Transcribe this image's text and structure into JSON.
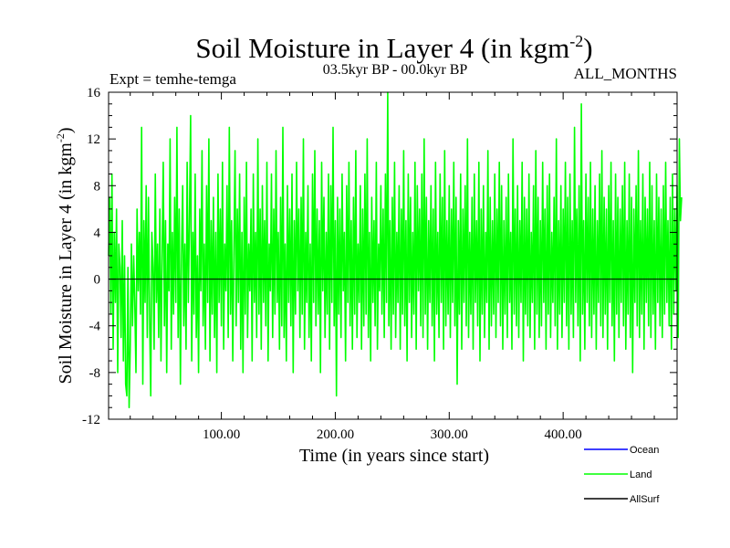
{
  "chart_data": {
    "type": "line",
    "title": "Soil Moisture in Layer 4 (in kgm",
    "title_sup": "-2",
    "title_close": ")",
    "subtitle": "03.5kyr BP - 00.0kyr BP",
    "expt_label": "Expt = temhe-temga",
    "months_label": "ALL_MONTHS",
    "xlabel": "Time (in years since start)",
    "ylabel": "Soil Moisture in Layer 4 (in kgm",
    "ylabel_sup": "-2",
    "ylabel_close": ")",
    "xlim": [
      1,
      500
    ],
    "ylim": [
      -12,
      16
    ],
    "x_ticks": [
      100,
      200,
      300,
      400
    ],
    "x_tick_labels": [
      "100.00",
      "200.00",
      "300.00",
      "400.00"
    ],
    "y_ticks": [
      -12,
      -8,
      -4,
      0,
      4,
      8,
      12,
      16
    ],
    "y_tick_labels": [
      "-12",
      "-8",
      "-4",
      "0",
      "4",
      "8",
      "12",
      "16"
    ],
    "zero_line": true,
    "grid": false,
    "legend_position": "bottom-right",
    "series": [
      {
        "name": "Ocean",
        "color": "#0000ff",
        "values": []
      },
      {
        "name": "Land",
        "color": "#00ff00",
        "x_start": 1,
        "x_step": 1,
        "values": [
          2,
          7,
          -3,
          9,
          -6,
          4,
          -2,
          6,
          -8,
          3,
          1,
          -5,
          5,
          -7,
          2,
          -9,
          -10,
          1,
          -11,
          -6,
          3,
          -4,
          2,
          -2,
          -8,
          6,
          -1,
          4,
          -3,
          13,
          -9,
          5,
          -2,
          8,
          -5,
          7,
          -3,
          -10,
          4,
          1,
          -6,
          9,
          -2,
          3,
          -5,
          6,
          -7,
          2,
          10,
          -4,
          5,
          -8,
          3,
          -1,
          12,
          -6,
          4,
          -3,
          7,
          -2,
          13,
          -5,
          6,
          -9,
          2,
          8,
          -4,
          3,
          -6,
          10,
          -2,
          5,
          14,
          -7,
          4,
          -3,
          9,
          -5,
          2,
          -8,
          6,
          -1,
          11,
          -4,
          3,
          -6,
          8,
          -2,
          12,
          -7,
          5,
          -3,
          7,
          -5,
          4,
          -8,
          9,
          -2,
          6,
          -4,
          10,
          -6,
          3,
          -1,
          8,
          -5,
          13,
          -3,
          5,
          -7,
          2,
          11,
          -4,
          6,
          -2,
          9,
          -6,
          4,
          -8,
          7,
          -3,
          10,
          -5,
          3,
          -1,
          6,
          -7,
          9,
          -2,
          4,
          -5,
          12,
          -3,
          6,
          -6,
          8,
          -2,
          5,
          -4,
          10,
          -7,
          3,
          -1,
          9,
          -5,
          6,
          -3,
          11,
          -2,
          4,
          -6,
          7,
          -4,
          13,
          -5,
          3,
          -7,
          8,
          -2,
          6,
          -4,
          9,
          -8,
          5,
          -3,
          10,
          -1,
          6,
          -5,
          7,
          -3,
          12,
          -6,
          4,
          -2,
          8,
          -5,
          3,
          -7,
          9,
          -2,
          11,
          -4,
          6,
          -3,
          5,
          -8,
          10,
          -1,
          7,
          -5,
          4,
          -3,
          9,
          -6,
          8,
          -2,
          13,
          -4,
          5,
          -10,
          7,
          -3,
          6,
          -5,
          9,
          -1,
          4,
          -7,
          8,
          -2,
          10,
          -4,
          5,
          -6,
          7,
          -3,
          11,
          -5,
          3,
          -2,
          8,
          -6,
          6,
          -4,
          9,
          -3,
          12,
          -5,
          4,
          -7,
          7,
          -2,
          5,
          -4,
          10,
          -6,
          3,
          -1,
          8,
          -3,
          6,
          -5,
          9,
          -2,
          16,
          -4,
          5,
          -6,
          7,
          -3,
          10,
          -5,
          4,
          -2,
          8,
          -6,
          6,
          -3,
          11,
          -4,
          5,
          -7,
          9,
          -2,
          7,
          -5,
          4,
          -3,
          10,
          -6,
          8,
          -1,
          6,
          -4,
          9,
          -5,
          12,
          -3,
          7,
          -6,
          5,
          -2,
          8,
          -4,
          6,
          -7,
          10,
          -3,
          4,
          -5,
          9,
          -2,
          7,
          -6,
          11,
          -4,
          5,
          -3,
          8,
          -5,
          6,
          -2,
          10,
          -4,
          7,
          -9,
          5,
          -3,
          9,
          -6,
          6,
          -2,
          8,
          -4,
          12,
          -5,
          4,
          -3,
          7,
          -6,
          9,
          -2,
          5,
          -4,
          10,
          -7,
          6,
          -3,
          8,
          -5,
          4,
          -2,
          11,
          -6,
          7,
          -4,
          5,
          -3,
          9,
          -5,
          6,
          -2,
          10,
          -4,
          8,
          -6,
          5,
          -3,
          7,
          -5,
          9,
          -2,
          4,
          -6,
          12,
          -3,
          6,
          -4,
          8,
          -5,
          5,
          -2,
          10,
          -7,
          7,
          -3,
          6,
          -4,
          9,
          -5,
          4,
          -2,
          8,
          -6,
          11,
          -3,
          7,
          -5,
          5,
          -4,
          10,
          -2,
          6,
          -6,
          8,
          -3,
          9,
          -5,
          4,
          -2,
          7,
          -4,
          12,
          -6,
          5,
          -3,
          8,
          -5,
          6,
          -2,
          10,
          -4,
          7,
          -6,
          9,
          -3,
          5,
          -5,
          13,
          -2,
          6,
          -4,
          8,
          -7,
          15,
          -3,
          5,
          -6,
          9,
          -2,
          7,
          -4,
          10,
          -5,
          6,
          -3,
          8,
          -6,
          5,
          -2,
          9,
          -4,
          11,
          -5,
          7,
          -3,
          6,
          -6,
          8,
          -2,
          10,
          -4,
          5,
          -7,
          9,
          -3,
          7,
          -5,
          6,
          -2,
          8,
          -4,
          10,
          -6,
          5,
          -3,
          9,
          -5,
          7,
          -8,
          6,
          -2,
          8,
          -4,
          11,
          -5,
          5,
          -3,
          9,
          -6,
          7,
          -2,
          6,
          -4,
          10,
          -5,
          8,
          -3,
          5,
          -6,
          9,
          -2,
          7,
          -4,
          6,
          -5,
          8,
          -3,
          10,
          -2,
          5,
          -4,
          7,
          -6,
          9,
          -3,
          6,
          -1,
          8,
          -5,
          12,
          5,
          7
        ]
      },
      {
        "name": "AllSurf",
        "color": "#000000",
        "values": []
      }
    ]
  }
}
